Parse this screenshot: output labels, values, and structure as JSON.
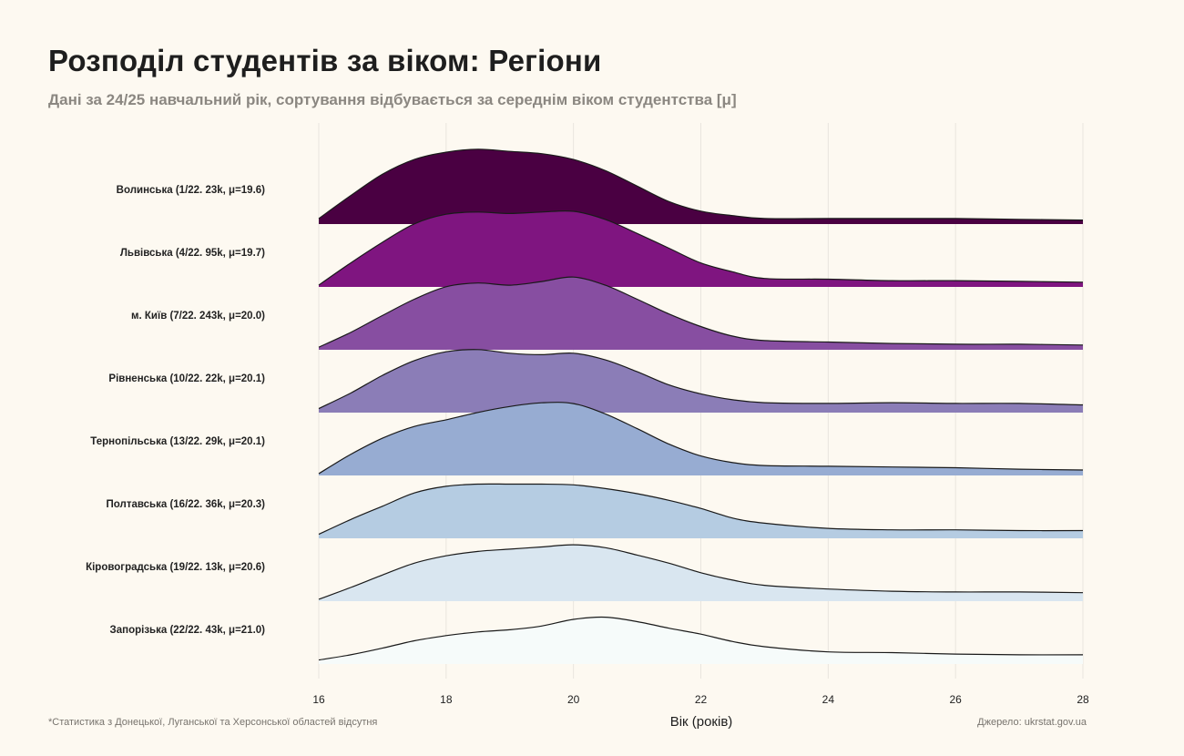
{
  "title": "Розподіл студентів за віком: Регіони",
  "subtitle": "Дані за 24/25 навчальний рік, сортування відбувається за середнім віком студентства [μ]",
  "footnote": "*Статистика з Донецької, Луганської та Херсонської областей відсутня",
  "source": "Джерело: ukrstat.gov.ua",
  "chart_data": {
    "type": "ridgeline",
    "xlabel": "Вік (років)",
    "xlim": [
      16,
      28
    ],
    "xticks": [
      "16",
      "18",
      "20",
      "22",
      "24",
      "26",
      "28"
    ],
    "grid": "vertical",
    "x": [
      16,
      16.5,
      17,
      17.5,
      18,
      18.5,
      19,
      19.5,
      20,
      20.5,
      21,
      21.5,
      22,
      22.5,
      23,
      24,
      25,
      26,
      27,
      28
    ],
    "value_note": "relative density",
    "series": [
      {
        "label": "Волинська (1/22. 23k, μ=19.6)",
        "color": "#4a0042",
        "values": [
          5,
          36,
          65,
          85,
          95,
          99,
          96,
          93,
          85,
          70,
          49,
          28,
          15,
          9,
          5,
          5,
          5,
          5,
          4,
          3
        ]
      },
      {
        "label": "Львівська (4/22. 95k, μ=19.7)",
        "color": "#7f1580",
        "values": [
          0,
          30,
          58,
          83,
          96,
          99,
          97,
          99,
          100,
          89,
          70,
          50,
          30,
          18,
          9,
          8,
          6,
          6,
          5,
          4
        ]
      },
      {
        "label": "м. Київ (7/22. 243k, μ=20.0)",
        "color": "#874ea1",
        "values": [
          1,
          21,
          44,
          66,
          83,
          88,
          85,
          90,
          96,
          85,
          66,
          46,
          29,
          16,
          10,
          8,
          6,
          5,
          5,
          4
        ]
      },
      {
        "label": "Рівненська (10/22. 22k, μ=20.1)",
        "color": "#8b7db7",
        "values": [
          3,
          24,
          48,
          68,
          80,
          83,
          78,
          76,
          78,
          69,
          53,
          35,
          23,
          15,
          11,
          10,
          11,
          10,
          10,
          8
        ]
      },
      {
        "label": "Тернопільська (13/22. 29k, μ=20.1)",
        "color": "#97acd2",
        "values": [
          0,
          26,
          48,
          64,
          73,
          83,
          91,
          96,
          95,
          81,
          61,
          40,
          24,
          15,
          11,
          10,
          9,
          8,
          6,
          5
        ]
      },
      {
        "label": "Полтавська (16/22. 36k, μ=20.3)",
        "color": "#b5cce2",
        "values": [
          3,
          23,
          41,
          59,
          68,
          71,
          71,
          71,
          70,
          65,
          58,
          49,
          38,
          25,
          18,
          11,
          9,
          9,
          8,
          8
        ]
      },
      {
        "label": "Кіровоградська (19/22. 13k, μ=20.6)",
        "color": "#d9e6f0",
        "values": [
          0,
          16,
          33,
          49,
          59,
          65,
          68,
          71,
          74,
          70,
          60,
          49,
          36,
          26,
          19,
          14,
          11,
          10,
          10,
          9
        ]
      },
      {
        "label": "Запорізька (22/22. 43k, μ=21.0)",
        "color": "#f6fbfa",
        "values": [
          3,
          10,
          19,
          29,
          36,
          41,
          44,
          49,
          58,
          61,
          55,
          46,
          38,
          28,
          21,
          14,
          13,
          11,
          10,
          10
        ]
      }
    ]
  }
}
